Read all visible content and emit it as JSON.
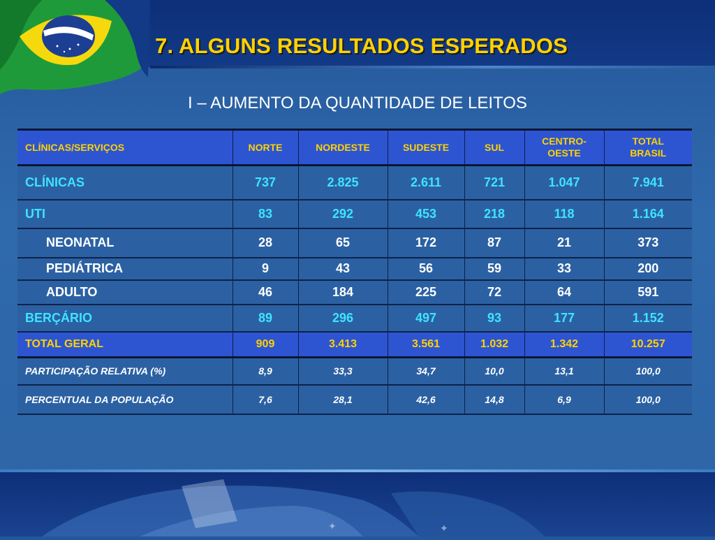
{
  "title": "7. ALGUNS RESULTADOS ESPERADOS",
  "subtitle": "I – AUMENTO DA QUANTIDADE DE LEITOS",
  "colors": {
    "accent_yellow": "#ffd200",
    "header_blue": "#2d55d2",
    "cyan_text": "#3fe3ff",
    "background": "#2b61a3"
  },
  "flag_icon": "brazil-flag",
  "table": {
    "headers": [
      "CLÍNICAS/SERVIÇOS",
      "NORTE",
      "NORDESTE",
      "SUDESTE",
      "SUL",
      "CENTRO-OESTE",
      "TOTAL BRASIL"
    ],
    "rows": [
      {
        "label": "CLÍNICAS",
        "values": [
          "737",
          "2.825",
          "2.611",
          "721",
          "1.047",
          "7.941"
        ]
      },
      {
        "label": "UTI",
        "values": [
          "83",
          "292",
          "453",
          "218",
          "118",
          "1.164"
        ]
      },
      {
        "label": "NEONATAL",
        "values": [
          "28",
          "65",
          "172",
          "87",
          "21",
          "373"
        ]
      },
      {
        "label": "PEDIÁTRICA",
        "values": [
          "9",
          "43",
          "56",
          "59",
          "33",
          "200"
        ]
      },
      {
        "label": "ADULTO",
        "values": [
          "46",
          "184",
          "225",
          "72",
          "64",
          "591"
        ]
      },
      {
        "label": "BERÇÁRIO",
        "values": [
          "89",
          "296",
          "497",
          "93",
          "177",
          "1.152"
        ]
      }
    ],
    "total": {
      "label": "TOTAL GERAL",
      "values": [
        "909",
        "3.413",
        "3.561",
        "1.032",
        "1.342",
        "10.257"
      ]
    },
    "footer_rows": [
      {
        "label": "PARTICIPAÇÃO RELATIVA (%)",
        "values": [
          "8,9",
          "33,3",
          "34,7",
          "10,0",
          "13,1",
          "100,0"
        ]
      },
      {
        "label": "PERCENTUAL DA POPULAÇÃO",
        "values": [
          "7,6",
          "28,1",
          "42,6",
          "14,8",
          "6,9",
          "100,0"
        ]
      }
    ]
  }
}
